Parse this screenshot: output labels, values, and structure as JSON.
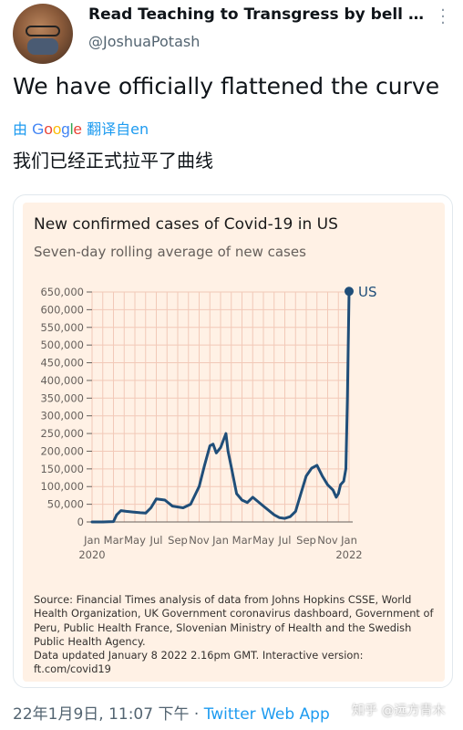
{
  "tweet": {
    "display_name": "Read Teaching to Transgress by bell h...",
    "handle": "@JoshuaPotash",
    "text": "We have officially flattened the curve",
    "translate_prefix": "由",
    "translate_suffix": "翻译自en",
    "translated_text": "我们已经正式拉平了曲线",
    "timestamp": "22年1月9日, 11:07 下午 · ",
    "app": "Twitter Web App",
    "watermark": "知乎 @远方青木"
  },
  "icons": {
    "avatar": "user-avatar",
    "more": "more-icon",
    "google": "google-logo"
  },
  "colors": {
    "accent": "#1d9bf0",
    "chart_background": "#fff1e5",
    "line": "#1f4e79"
  },
  "chart_data": {
    "type": "line",
    "title": "New confirmed cases of Covid-19 in US",
    "subtitle": "Seven-day rolling average of new cases",
    "ylim": [
      0,
      650000
    ],
    "yticks": [
      0,
      50000,
      100000,
      150000,
      200000,
      250000,
      300000,
      350000,
      400000,
      450000,
      500000,
      550000,
      600000,
      650000
    ],
    "ytick_labels": [
      "0",
      "50,000",
      "100,000",
      "150,000",
      "200,000",
      "250,000",
      "300,000",
      "350,000",
      "400,000",
      "450,000",
      "500,000",
      "550,000",
      "600,000",
      "650,000"
    ],
    "xtick_labels": [
      "Jan",
      "Mar",
      "May",
      "Jul",
      "Sep",
      "Nov",
      "Jan",
      "Mar",
      "May",
      "Jul",
      "Sep",
      "Nov",
      "Jan"
    ],
    "year_labels": [
      "2020",
      "2022"
    ],
    "grid": true,
    "series": [
      {
        "name": "US",
        "x": [
          0,
          1,
          1.6,
          2,
          2.3,
          2.7,
          3.2,
          3.8,
          4.5,
          5,
          5.5,
          6,
          6.8,
          7.5,
          8.5,
          9.2,
          9.6,
          10,
          10.5,
          11,
          11.3,
          11.6,
          12,
          12.5,
          12.7,
          13,
          13.5,
          14,
          14.5,
          15,
          16,
          17,
          17.5,
          18,
          18.5,
          19,
          19.5,
          20,
          20.5,
          21,
          21.5,
          22,
          22.5,
          22.8,
          23,
          23.2,
          23.5,
          23.7,
          23.85,
          24
        ],
        "y": [
          0,
          0,
          500,
          1000,
          20000,
          32000,
          30000,
          28000,
          26000,
          25000,
          40000,
          65000,
          62000,
          45000,
          40000,
          50000,
          75000,
          100000,
          160000,
          215000,
          220000,
          195000,
          210000,
          250000,
          200000,
          155000,
          80000,
          62000,
          55000,
          70000,
          45000,
          20000,
          12000,
          10000,
          15000,
          30000,
          80000,
          130000,
          152000,
          160000,
          130000,
          105000,
          90000,
          70000,
          80000,
          105000,
          115000,
          150000,
          350000,
          652000
        ]
      }
    ]
  },
  "source": {
    "text": "Source: Financial Times analysis of data from Johns Hopkins CSSE, World Health Organization, UK Government coronavirus dashboard, Government of Peru, Public Health France, Slovenian Ministry of Health and the Swedish Public Health Agency.",
    "updated": "Data updated January 8 2022 2.16pm GMT. Interactive version:",
    "link": "ft.com/covid19"
  }
}
